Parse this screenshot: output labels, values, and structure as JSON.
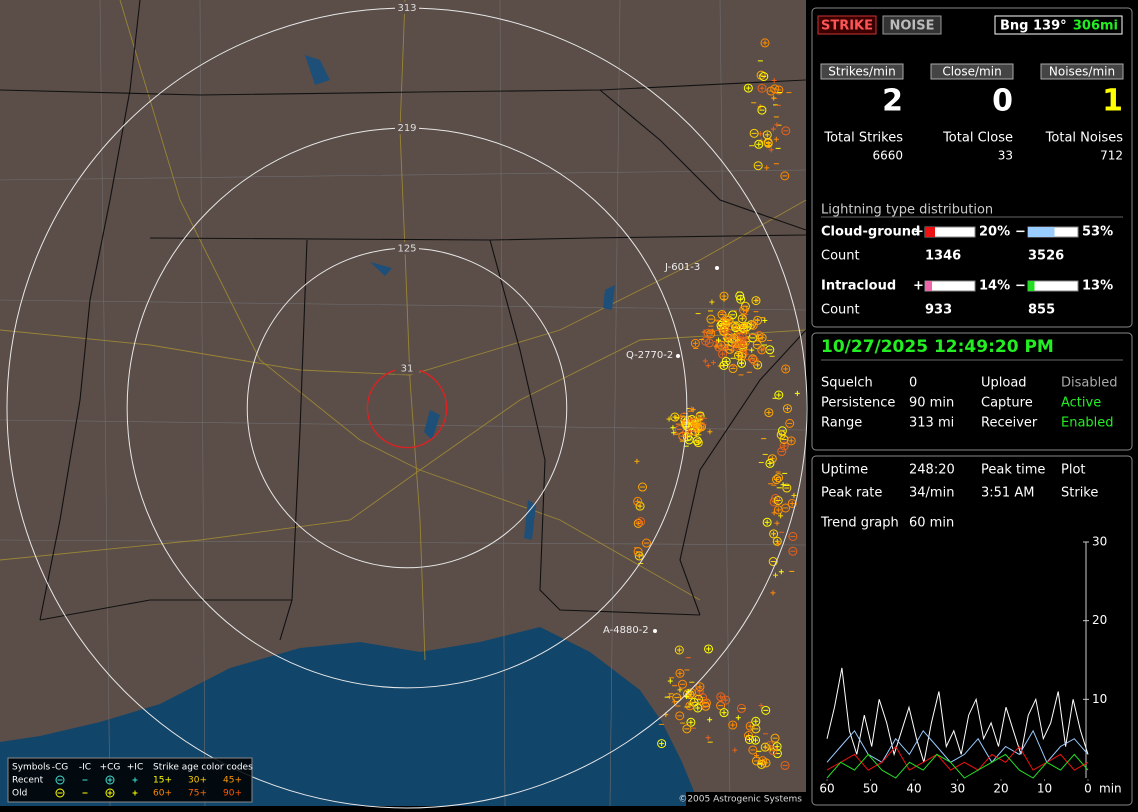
{
  "map": {
    "rings": [
      313,
      219,
      125,
      31
    ],
    "stations": [
      "J-601-3",
      "Q-2770-2",
      "A-4880-2"
    ],
    "copyright": "©2005 Astrogenic Systems",
    "legend": {
      "symbols_label": "Symbols",
      "columns": [
        "-CG",
        "-IC",
        "+CG",
        "+IC"
      ],
      "age_title": "Strike age color codes",
      "rows": [
        {
          "label": "Recent",
          "ages": [
            "15+",
            "30+",
            "45+"
          ],
          "age_colors": [
            "#ffff00",
            "#ffcc00",
            "#ff9900"
          ],
          "symbol_color": "#40e0d0"
        },
        {
          "label": "Old",
          "ages": [
            "60+",
            "75+",
            "90+"
          ],
          "age_colors": [
            "#ff8800",
            "#ff6600",
            "#ff5500"
          ],
          "symbol_color": "#ffff00"
        }
      ]
    }
  },
  "header": {
    "strike_button": "STRIKE",
    "noise_button": "NOISE",
    "bearing": "Bng 139°",
    "distance": "306mi"
  },
  "rates": [
    {
      "label": "Strikes/min",
      "value": 2,
      "color": "#ffffff"
    },
    {
      "label": "Close/min",
      "value": 0,
      "color": "#ffffff"
    },
    {
      "label": "Noises/min",
      "value": 1,
      "color": "#ffff00"
    }
  ],
  "totals": [
    {
      "label": "Total Strikes",
      "value": 6660
    },
    {
      "label": "Total Close",
      "value": 33
    },
    {
      "label": "Total Noises",
      "value": 712
    }
  ],
  "distribution": {
    "title": "Lightning type distribution",
    "count_label": "Count",
    "rows": [
      {
        "label": "Cloud-ground",
        "positive": {
          "sign": "+",
          "value": 20,
          "label": "20%",
          "count": 1346,
          "color": "#ee1111"
        },
        "negative": {
          "sign": "−",
          "value": 53,
          "label": "53%",
          "count": 3526,
          "color": "#99ccff"
        }
      },
      {
        "label": "Intracloud",
        "positive": {
          "sign": "+",
          "value": 14,
          "label": "14%",
          "count": 933,
          "color": "#ee66aa"
        },
        "negative": {
          "sign": "−",
          "value": 13,
          "label": "13%",
          "count": 855,
          "color": "#22dd22"
        }
      }
    ]
  },
  "status": {
    "datetime": "10/27/2025 12:49:20 PM",
    "rows": [
      [
        {
          "text": "Squelch"
        },
        {
          "text": "0"
        },
        {
          "text": "Upload"
        },
        {
          "text": "Disabled",
          "color": "#aaaaaa"
        }
      ],
      [
        {
          "text": "Persistence"
        },
        {
          "text": "90 min"
        },
        {
          "text": "Capture"
        },
        {
          "text": "Active",
          "color": "#22ee22"
        }
      ],
      [
        {
          "text": "Range"
        },
        {
          "text": "313 mi"
        },
        {
          "text": "Receiver"
        },
        {
          "text": "Enabled",
          "color": "#22ee22"
        }
      ]
    ]
  },
  "stats": {
    "rows": [
      [
        {
          "text": "Uptime"
        },
        {
          "text": "248:20"
        },
        {
          "text": "Peak time"
        },
        {
          "text": "Plot"
        }
      ],
      [
        {
          "text": "Peak rate"
        },
        {
          "text": "34/min"
        },
        {
          "text": "3:51 AM"
        },
        {
          "text": "Strike"
        }
      ],
      [
        {
          "text": "Trend graph"
        },
        {
          "text": "60 min"
        }
      ]
    ]
  },
  "chart_data": {
    "type": "line",
    "x_unit": "min",
    "xlim": [
      60,
      0
    ],
    "xticks": [
      60,
      50,
      40,
      30,
      20,
      10,
      0
    ],
    "ylim": [
      0,
      30
    ],
    "yticks": [
      10,
      20,
      30
    ],
    "series": [
      {
        "color": "#ffffff",
        "values": [
          5,
          9,
          14,
          6,
          3,
          8,
          4,
          10,
          7,
          3,
          6,
          9,
          5,
          2,
          7,
          11,
          4,
          6,
          3,
          8,
          10,
          5,
          7,
          4,
          9,
          6,
          3,
          8,
          10,
          5,
          7,
          11,
          4,
          10,
          6,
          3
        ]
      },
      {
        "color": "#99ccff",
        "values": [
          2,
          4,
          6,
          3,
          2,
          5,
          3,
          6,
          4,
          2,
          3,
          5,
          2,
          4,
          3,
          6,
          2,
          4,
          5,
          3
        ]
      },
      {
        "color": "#ee1111",
        "values": [
          1,
          2,
          3,
          1,
          2,
          4,
          1,
          2,
          3,
          1,
          2,
          1,
          3,
          2,
          4,
          1,
          2,
          3,
          1,
          2
        ]
      },
      {
        "color": "#22dd22",
        "values": [
          0,
          2,
          1,
          3,
          1,
          0,
          2,
          1,
          3,
          2,
          0,
          1,
          2,
          3,
          1,
          0,
          2,
          1,
          3,
          1
        ]
      }
    ]
  }
}
